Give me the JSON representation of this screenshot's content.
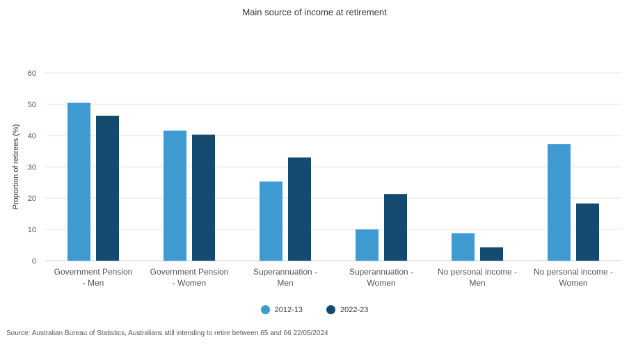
{
  "chart_data": {
    "type": "bar",
    "title": "Main source of income at retirement",
    "ylabel": "Proportion of retirees (%)",
    "xlabel": "",
    "ylim": [
      0,
      60
    ],
    "yticks": [
      0,
      10,
      20,
      30,
      40,
      50,
      60
    ],
    "grid": true,
    "legend_position": "bottom",
    "categories": [
      [
        "Government Pension",
        "- Men"
      ],
      [
        "Government Pension",
        "- Women"
      ],
      [
        "Superannuation -",
        "Men"
      ],
      [
        "Superannuation -",
        "Women"
      ],
      [
        "No personal income -",
        "Men"
      ],
      [
        "No personal income -",
        "Women"
      ]
    ],
    "series": [
      {
        "name": "2012-13",
        "color": "#3e9bd2",
        "values": [
          50.5,
          41.6,
          25.3,
          10.0,
          8.8,
          37.3
        ]
      },
      {
        "name": "2022-23",
        "color": "#144a6e",
        "values": [
          46.3,
          40.3,
          33.0,
          21.3,
          4.3,
          18.3
        ]
      }
    ]
  },
  "footer": {
    "source": "Source: Australian Bureau of Statistics, Australians still intending to retire between 65 and 66 22/05/2024"
  }
}
